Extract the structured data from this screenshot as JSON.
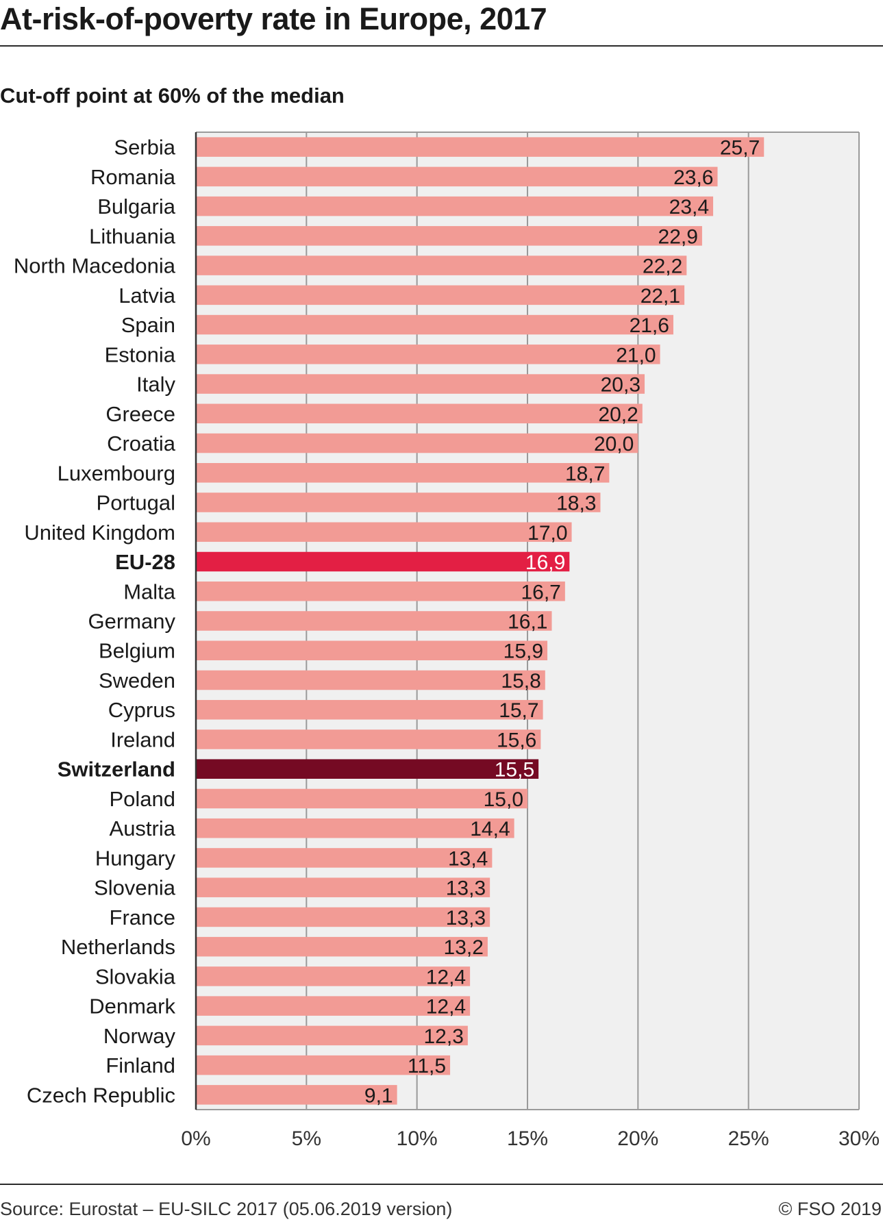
{
  "title": "At-risk-of-poverty rate in Europe, 2017",
  "subtitle": "Cut-off point at 60% of the median",
  "source": "Source: Eurostat – EU-SILC 2017 (05.06.2019 version)",
  "copyright": "© FSO 2019",
  "colors": {
    "bar": "#f29b95",
    "highlight_eu": "#e31f44",
    "highlight_ch": "#750a23",
    "plot_bg": "#f0f0f0",
    "grid": "#9a9a9a"
  },
  "chart_data": {
    "type": "bar",
    "orientation": "horizontal",
    "categories": [
      "Serbia",
      "Romania",
      "Bulgaria",
      "Lithuania",
      "North Macedonia",
      "Latvia",
      "Spain",
      "Estonia",
      "Italy",
      "Greece",
      "Croatia",
      "Luxembourg",
      "Portugal",
      "United Kingdom",
      "EU-28",
      "Malta",
      "Germany",
      "Belgium",
      "Sweden",
      "Cyprus",
      "Ireland",
      "Switzerland",
      "Poland",
      "Austria",
      "Hungary",
      "Slovenia",
      "France",
      "Netherlands",
      "Slovakia",
      "Denmark",
      "Norway",
      "Finland",
      "Czech Republic"
    ],
    "values": [
      25.7,
      23.6,
      23.4,
      22.9,
      22.2,
      22.1,
      21.6,
      21.0,
      20.3,
      20.2,
      20.0,
      18.7,
      18.3,
      17.0,
      16.9,
      16.7,
      16.1,
      15.9,
      15.8,
      15.7,
      15.6,
      15.5,
      15.0,
      14.4,
      13.4,
      13.3,
      13.3,
      13.2,
      12.4,
      12.4,
      12.3,
      11.5,
      9.1
    ],
    "value_labels": [
      "25,7",
      "23,6",
      "23,4",
      "22,9",
      "22,2",
      "22,1",
      "21,6",
      "21,0",
      "20,3",
      "20,2",
      "20,0",
      "18,7",
      "18,3",
      "17,0",
      "16,9",
      "16,7",
      "16,1",
      "15,9",
      "15,8",
      "15,7",
      "15,6",
      "15,5",
      "15,0",
      "14,4",
      "13,4",
      "13,3",
      "13,3",
      "13,2",
      "12,4",
      "12,4",
      "12,3",
      "11,5",
      "9,1"
    ],
    "highlights": {
      "EU-28": "highlight_eu",
      "Switzerland": "highlight_ch"
    },
    "xlim": [
      0,
      30
    ],
    "xticks": [
      0,
      5,
      10,
      15,
      20,
      25,
      30
    ],
    "xtick_labels": [
      "0%",
      "5%",
      "10%",
      "15%",
      "20%",
      "25%",
      "30%"
    ],
    "grid": true
  }
}
